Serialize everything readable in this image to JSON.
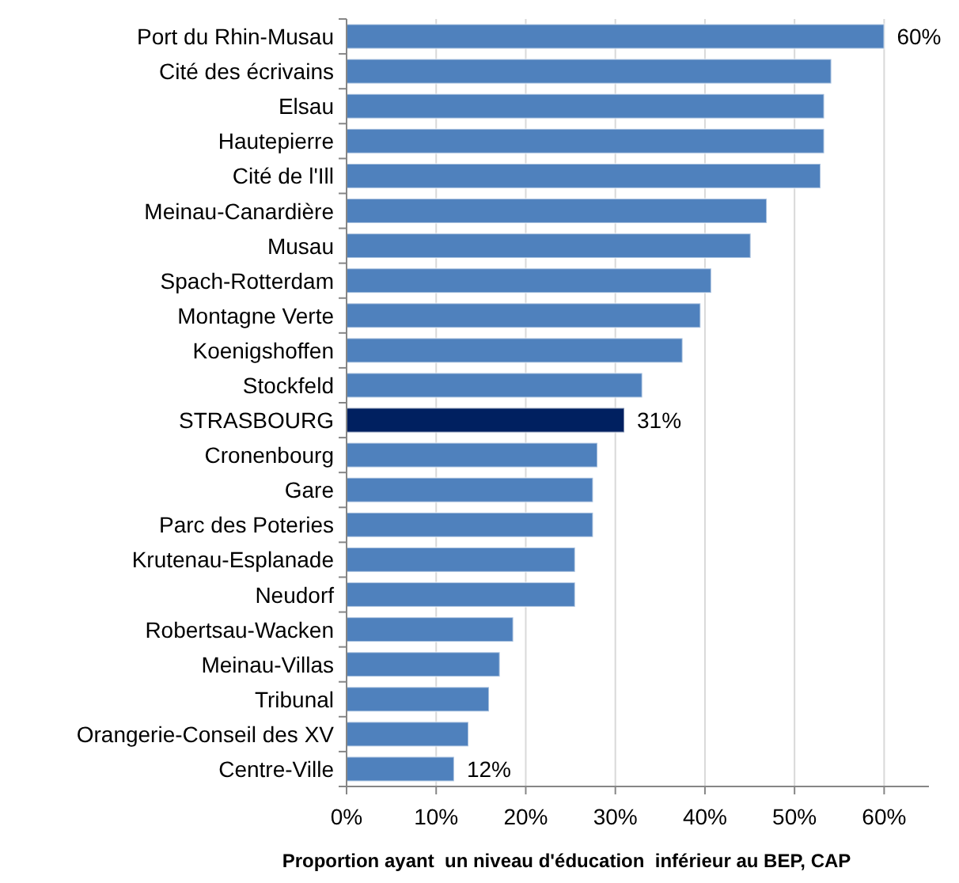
{
  "chart_data": {
    "type": "bar",
    "orientation": "horizontal",
    "categories": [
      "Port du Rhin-Musau",
      "Cité des écrivains",
      "Elsau",
      "Hautepierre",
      "Cité de l'Ill",
      "Meinau-Canardière",
      "Musau",
      "Spach-Rotterdam",
      "Montagne Verte",
      "Koenigshoffen",
      "Stockfeld",
      "STRASBOURG",
      "Cronenbourg",
      "Gare",
      "Parc des Poteries",
      "Krutenau-Esplanade",
      "Neudorf",
      "Robertsau-Wacken",
      "Meinau-Villas",
      "Tribunal",
      "Orangerie-Conseil des XV",
      "Centre-Ville"
    ],
    "values": [
      60,
      54.1,
      53.3,
      53.3,
      52.9,
      46.9,
      45.1,
      40.7,
      39.5,
      37.5,
      33,
      31,
      28,
      27.5,
      27.5,
      25.5,
      25.5,
      18.6,
      17.1,
      15.9,
      13.6,
      12
    ],
    "colors": [
      "#4f81bd",
      "#4f81bd",
      "#4f81bd",
      "#4f81bd",
      "#4f81bd",
      "#4f81bd",
      "#4f81bd",
      "#4f81bd",
      "#4f81bd",
      "#4f81bd",
      "#4f81bd",
      "#002060",
      "#4f81bd",
      "#4f81bd",
      "#4f81bd",
      "#4f81bd",
      "#4f81bd",
      "#4f81bd",
      "#4f81bd",
      "#4f81bd",
      "#4f81bd",
      "#4f81bd"
    ],
    "value_labels": [
      "60%",
      null,
      null,
      null,
      null,
      null,
      null,
      null,
      null,
      null,
      null,
      "31%",
      null,
      null,
      null,
      null,
      null,
      null,
      null,
      null,
      null,
      "12%"
    ],
    "xlim": [
      0,
      65
    ],
    "xticks": [
      {
        "value": 0,
        "label": "0%"
      },
      {
        "value": 10,
        "label": "10%"
      },
      {
        "value": 20,
        "label": "20%"
      },
      {
        "value": 30,
        "label": "30%"
      },
      {
        "value": 40,
        "label": "40%"
      },
      {
        "value": 50,
        "label": "50%"
      },
      {
        "value": 60,
        "label": "60%"
      }
    ],
    "xlabel": "Proportion ayant  un niveau d'éducation  inférieur au BEP, CAP",
    "grid": "x"
  }
}
